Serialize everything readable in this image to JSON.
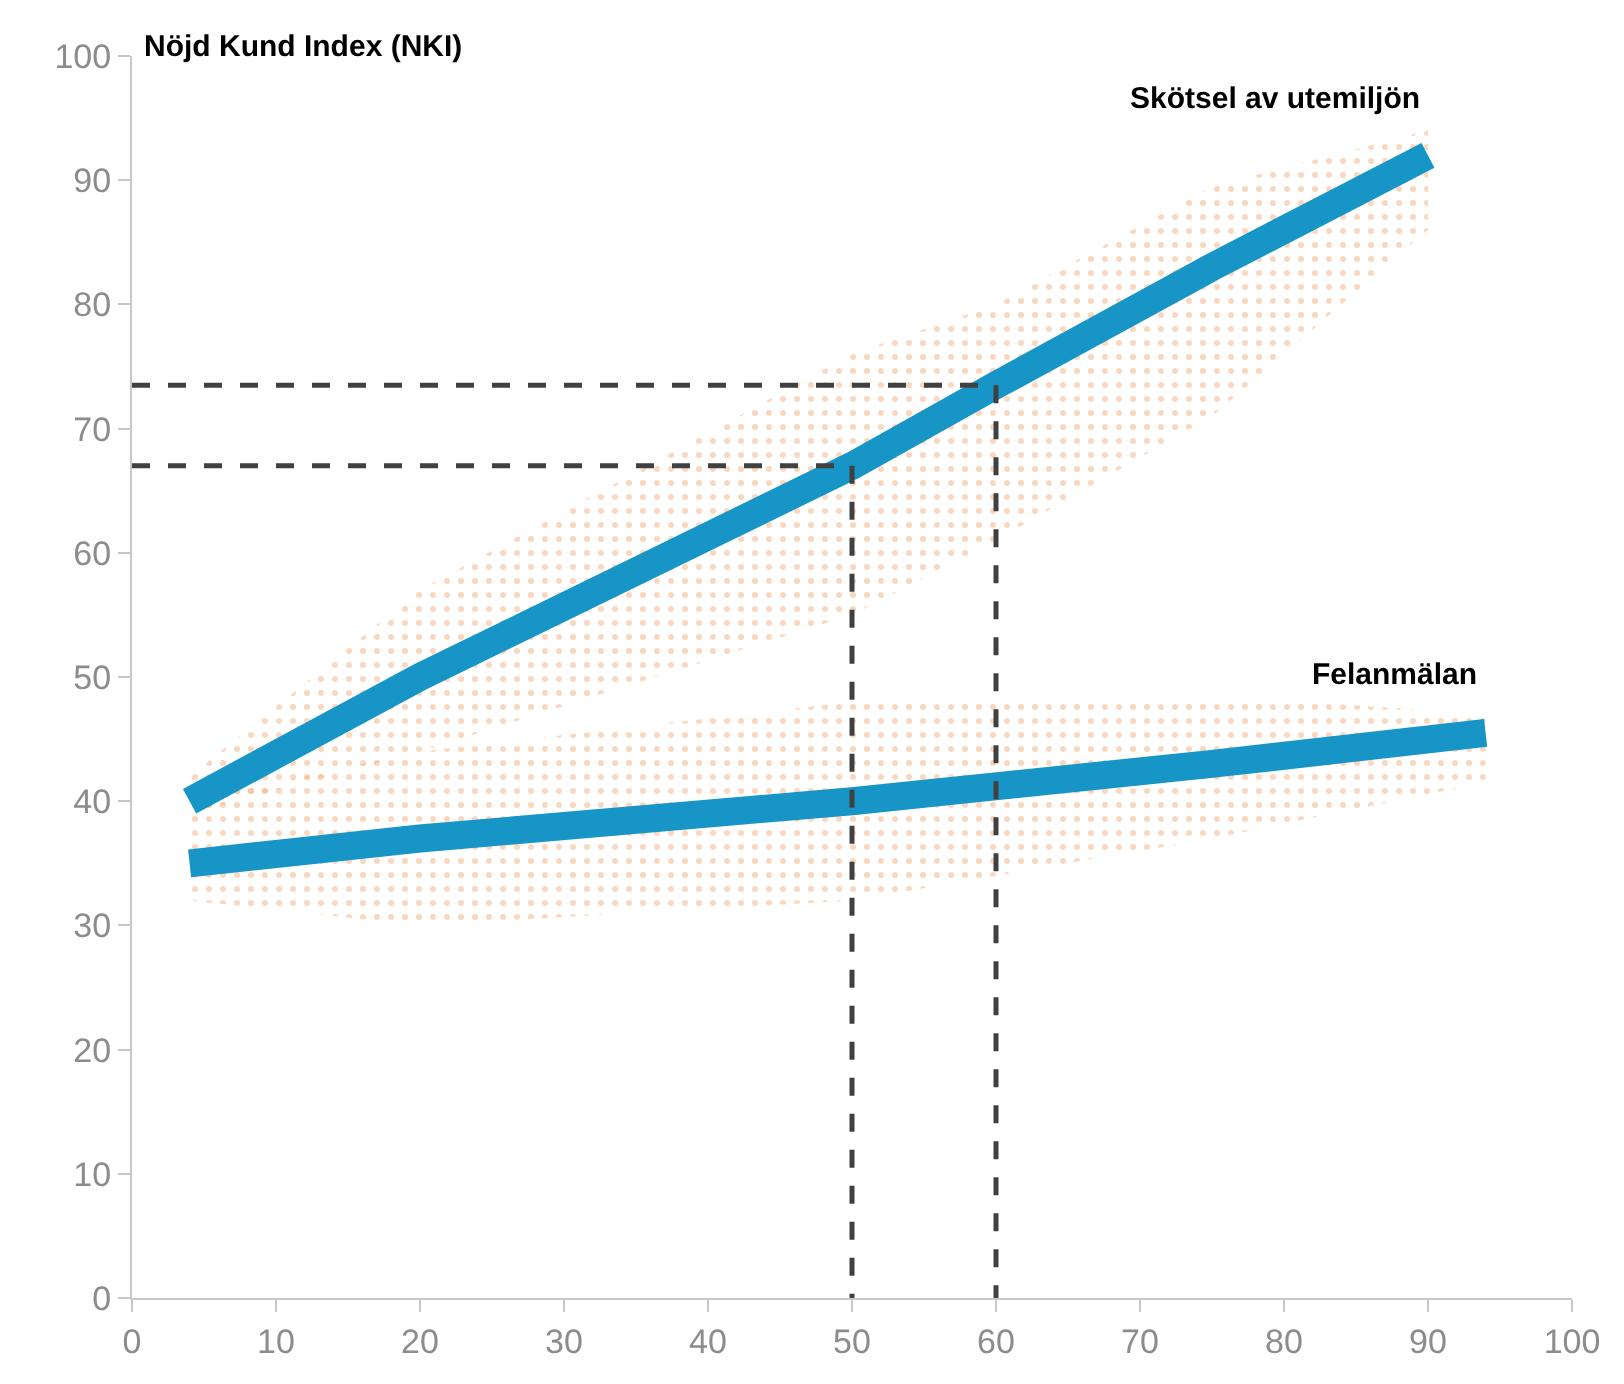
{
  "chart_data": {
    "type": "line",
    "ylabel": "Nöjd Kund Index (NKI)",
    "xlim": [
      0,
      100
    ],
    "xticks": [
      0,
      10,
      20,
      30,
      40,
      50,
      60,
      70,
      80,
      90,
      100
    ],
    "ylim": [
      0,
      100
    ],
    "yticks": [
      0,
      10,
      20,
      30,
      40,
      50,
      60,
      70,
      80,
      90,
      100
    ],
    "legend": false,
    "marker": "none",
    "series": [
      {
        "name": "Skötsel av utemiljön",
        "color": "#1695c6",
        "x": [
          4,
          20,
          50,
          60,
          75,
          90
        ],
        "values": [
          40,
          50,
          67,
          73.5,
          83,
          92
        ],
        "lower": [
          39,
          44,
          55,
          61,
          71,
          86
        ],
        "upper": [
          42,
          57,
          76,
          80,
          89.5,
          94
        ]
      },
      {
        "name": "Felanmälan",
        "color": "#1695c6",
        "x": [
          4,
          20,
          50,
          75,
          94
        ],
        "values": [
          35,
          37,
          40,
          43,
          45.5
        ],
        "lower": [
          32,
          30,
          32,
          37,
          41.5
        ],
        "upper": [
          40,
          44,
          48,
          48.5,
          47
        ]
      },
      {
        "color": "#404040",
        "line_style": "dashed",
        "x": [
          0,
          60,
          60
        ],
        "values": [
          73.5,
          73.5,
          0
        ]
      },
      {
        "color": "#404040",
        "line_style": "dashed",
        "x": [
          0,
          50,
          50
        ],
        "values": [
          67,
          67,
          0
        ]
      }
    ]
  }
}
